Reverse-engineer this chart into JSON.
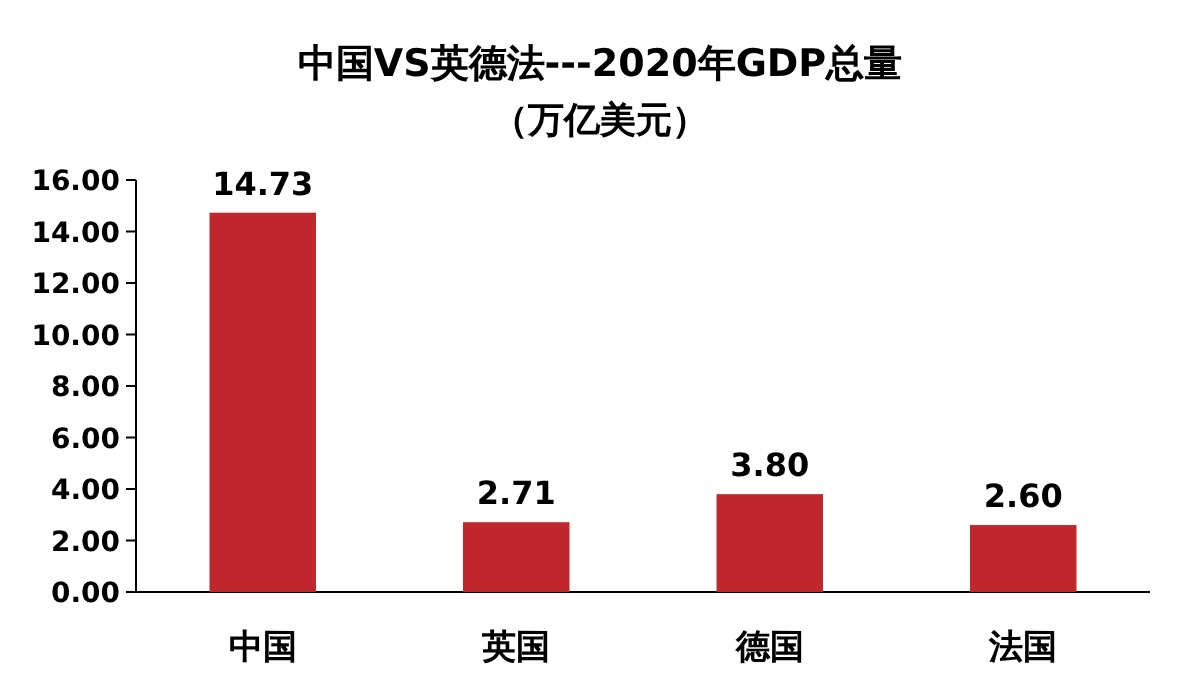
{
  "chart_data": {
    "type": "bar",
    "title": "中国VS英德法---2020年GDP总量",
    "subtitle": "（万亿美元）",
    "categories": [
      "中国",
      "英国",
      "德国",
      "法国"
    ],
    "values": [
      14.73,
      2.71,
      3.8,
      2.6
    ],
    "value_labels": [
      "14.73",
      "2.71",
      "3.80",
      "2.60"
    ],
    "color": "#c0272d",
    "ylim": [
      0,
      16
    ],
    "yticks": [
      {
        "value": 0,
        "label": "0.00"
      },
      {
        "value": 2,
        "label": "2.00"
      },
      {
        "value": 4,
        "label": "4.00"
      },
      {
        "value": 6,
        "label": "6.00"
      },
      {
        "value": 8,
        "label": "8.00"
      },
      {
        "value": 10,
        "label": "10.00"
      },
      {
        "value": 12,
        "label": "12.00"
      },
      {
        "value": 14,
        "label": "14.00"
      },
      {
        "value": 16,
        "label": "16.00"
      }
    ],
    "grid": false
  }
}
